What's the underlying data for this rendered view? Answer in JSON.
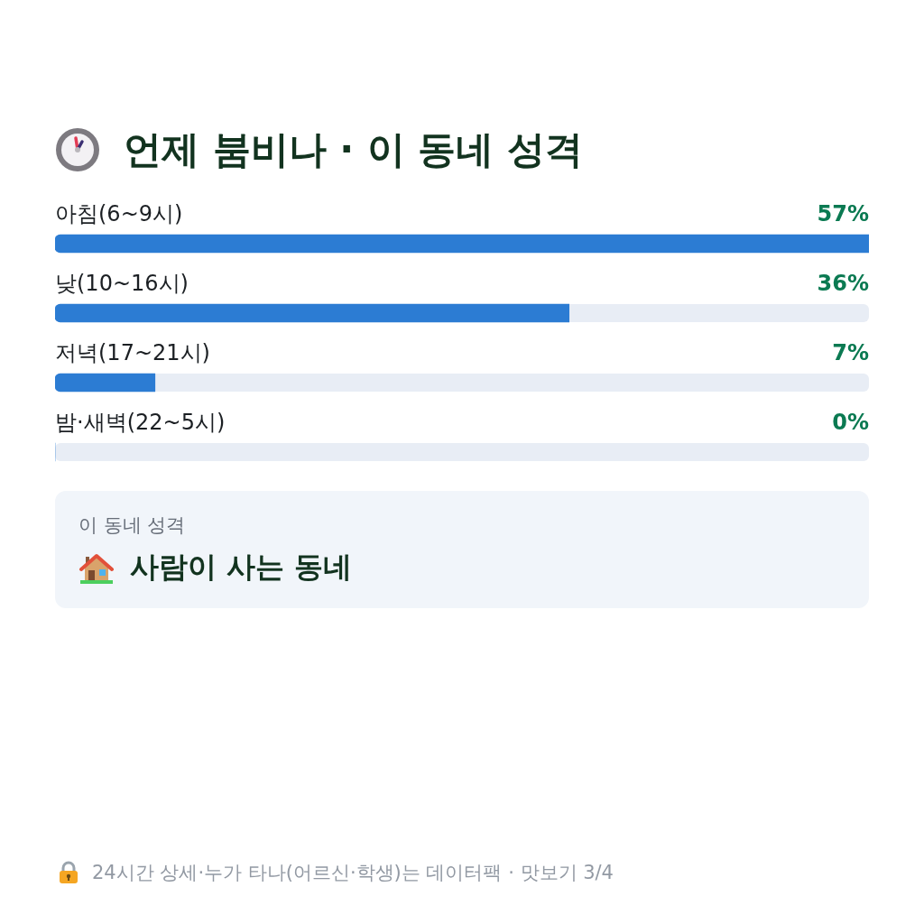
{
  "chart_data": {
    "type": "bar",
    "orientation": "horizontal",
    "title": "언제 붐비나 · 이 동네 성격",
    "categories": [
      "아침(6~9시)",
      "낮(10~16시)",
      "저녁(17~21시)",
      "밤·새벽(22~5시)"
    ],
    "values": [
      57,
      36,
      7,
      0
    ],
    "value_labels": [
      "57%",
      "36%",
      "7%",
      "0%"
    ],
    "color": "#2c7cd3",
    "xlim": [
      0,
      57
    ],
    "tick_labels": "y",
    "annotations": [
      "이 동네 성격",
      "사람이 사는 동네",
      "24시간 상세·누가 타나(어르신·학생)는 데이터팩 · 맛보기 3/4"
    ]
  }
}
